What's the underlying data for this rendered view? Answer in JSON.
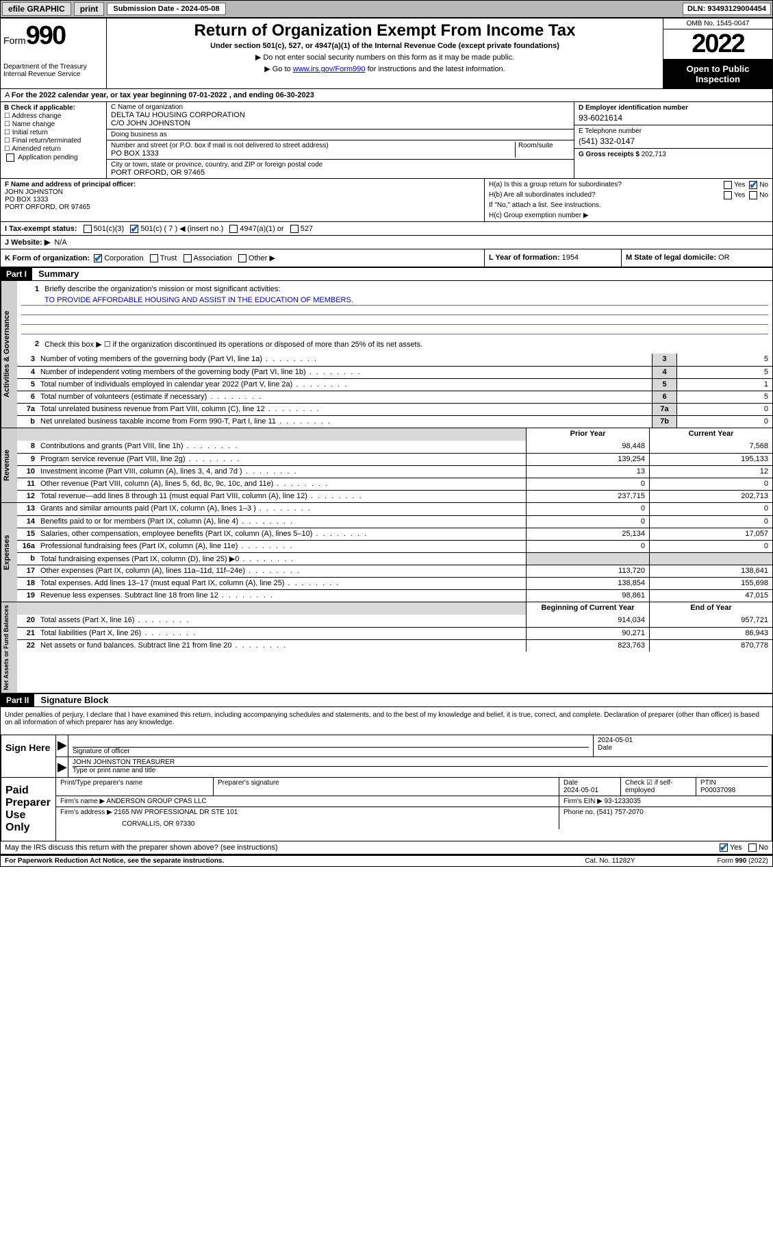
{
  "topbar": {
    "efile": "efile GRAPHIC",
    "print": "print",
    "submission_label": "Submission Date - 2024-05-08",
    "dln": "DLN: 93493129004454"
  },
  "header": {
    "form_prefix": "Form",
    "form_num": "990",
    "dept": "Department of the Treasury",
    "irs": "Internal Revenue Service",
    "title": "Return of Organization Exempt From Income Tax",
    "subtitle": "Under section 501(c), 527, or 4947(a)(1) of the Internal Revenue Code (except private foundations)",
    "warn": "▶ Do not enter social security numbers on this form as it may be made public.",
    "goto": "▶ Go to www.irs.gov/Form990 for instructions and the latest information.",
    "goto_link": "www.irs.gov/Form990",
    "omb": "OMB No. 1545-0047",
    "year": "2022",
    "open": "Open to Public Inspection"
  },
  "line_a": "For the 2022 calendar year, or tax year beginning 07-01-2022   , and ending 06-30-2023",
  "col_b": {
    "label": "B Check if applicable:",
    "opts": [
      "☐ Address change",
      "☐ Name change",
      "☐ Initial return",
      "☐ Final return/terminated",
      "☐ Amended return",
      "   Application pending"
    ]
  },
  "col_c": {
    "name_label": "C Name of organization",
    "name": "DELTA TAU HOUSING CORPORATION",
    "care_of": "C/O JOHN JOHNSTON",
    "dba_label": "Doing business as",
    "dba": "",
    "addr_label": "Number and street (or P.O. box if mail is not delivered to street address)",
    "room_label": "Room/suite",
    "addr": "PO BOX 1333",
    "city_label": "City or town, state or province, country, and ZIP or foreign postal code",
    "city": "PORT ORFORD, OR  97465"
  },
  "col_d": {
    "label": "D Employer identification number",
    "val": "93-6021614"
  },
  "col_e": {
    "label": "E Telephone number",
    "val": "(541) 332-0147"
  },
  "col_g": {
    "label": "G Gross receipts $",
    "val": "202,713"
  },
  "col_f": {
    "label": "F  Name and address of principal officer:",
    "name": "JOHN JOHNSTON",
    "addr1": "PO BOX 1333",
    "addr2": "PORT ORFORD, OR  97465"
  },
  "col_h": {
    "ha": "H(a)  Is this a group return for subordinates?",
    "ha_yes": "Yes",
    "ha_no": "No",
    "hb": "H(b)  Are all subordinates included?",
    "hb_yes": "Yes",
    "hb_no": "No",
    "hb_note": "If \"No,\" attach a list. See instructions.",
    "hc": "H(c)  Group exemption number ▶"
  },
  "row_i": {
    "label": "I     Tax-exempt status:",
    "c3": "501(c)(3)",
    "c": "501(c) ( 7 ) ◀ (insert no.)",
    "a1": "4947(a)(1) or",
    "s527": "527"
  },
  "row_j": {
    "label": "J    Website: ▶",
    "val": "N/A"
  },
  "row_k": {
    "label": "K Form of organization:",
    "corp": "Corporation",
    "trust": "Trust",
    "assoc": "Association",
    "other": "Other ▶"
  },
  "row_l": {
    "label": "L Year of formation:",
    "val": "1954"
  },
  "row_m": {
    "label": "M State of legal domicile:",
    "val": "OR"
  },
  "part1": {
    "tag": "Part I",
    "title": "Summary",
    "line1_label": "Briefly describe the organization's mission or most significant activities:",
    "mission": "TO PROVIDE AFFORDABLE HOUSING AND ASSIST IN THE EDUCATION OF MEMBERS.",
    "line2": "Check this box ▶ ☐  if the organization discontinued its operations or disposed of more than 25% of its net assets."
  },
  "sections": {
    "gov_label": "Activities & Governance",
    "rev_label": "Revenue",
    "exp_label": "Expenses",
    "net_label": "Net Assets or Fund Balances"
  },
  "gov_rows": [
    {
      "n": "3",
      "d": "Number of voting members of the governing body (Part VI, line 1a)",
      "cell": "3",
      "v": "5"
    },
    {
      "n": "4",
      "d": "Number of independent voting members of the governing body (Part VI, line 1b)",
      "cell": "4",
      "v": "5"
    },
    {
      "n": "5",
      "d": "Total number of individuals employed in calendar year 2022 (Part V, line 2a)",
      "cell": "5",
      "v": "1"
    },
    {
      "n": "6",
      "d": "Total number of volunteers (estimate if necessary)",
      "cell": "6",
      "v": "5"
    },
    {
      "n": "7a",
      "d": "Total unrelated business revenue from Part VIII, column (C), line 12",
      "cell": "7a",
      "v": "0"
    },
    {
      "n": "b",
      "d": "Net unrelated business taxable income from Form 990-T, Part I, line 11",
      "cell": "7b",
      "v": "0"
    }
  ],
  "col_headers": {
    "prior": "Prior Year",
    "curr": "Current Year"
  },
  "rev_rows": [
    {
      "n": "8",
      "d": "Contributions and grants (Part VIII, line 1h)",
      "p": "98,448",
      "c": "7,568"
    },
    {
      "n": "9",
      "d": "Program service revenue (Part VIII, line 2g)",
      "p": "139,254",
      "c": "195,133"
    },
    {
      "n": "10",
      "d": "Investment income (Part VIII, column (A), lines 3, 4, and 7d )",
      "p": "13",
      "c": "12"
    },
    {
      "n": "11",
      "d": "Other revenue (Part VIII, column (A), lines 5, 6d, 8c, 9c, 10c, and 11e)",
      "p": "0",
      "c": "0"
    },
    {
      "n": "12",
      "d": "Total revenue—add lines 8 through 11 (must equal Part VIII, column (A), line 12)",
      "p": "237,715",
      "c": "202,713"
    }
  ],
  "exp_rows": [
    {
      "n": "13",
      "d": "Grants and similar amounts paid (Part IX, column (A), lines 1–3 )",
      "p": "0",
      "c": "0"
    },
    {
      "n": "14",
      "d": "Benefits paid to or for members (Part IX, column (A), line 4)",
      "p": "0",
      "c": "0"
    },
    {
      "n": "15",
      "d": "Salaries, other compensation, employee benefits (Part IX, column (A), lines 5–10)",
      "p": "25,134",
      "c": "17,057"
    },
    {
      "n": "16a",
      "d": "Professional fundraising fees (Part IX, column (A), line 11e)",
      "p": "0",
      "c": "0"
    },
    {
      "n": "b",
      "d": "Total fundraising expenses (Part IX, column (D), line 25) ▶0",
      "p": "",
      "c": "",
      "grey": true
    },
    {
      "n": "17",
      "d": "Other expenses (Part IX, column (A), lines 11a–11d, 11f–24e)",
      "p": "113,720",
      "c": "138,641"
    },
    {
      "n": "18",
      "d": "Total expenses. Add lines 13–17 (must equal Part IX, column (A), line 25)",
      "p": "138,854",
      "c": "155,698"
    },
    {
      "n": "19",
      "d": "Revenue less expenses. Subtract line 18 from line 12",
      "p": "98,861",
      "c": "47,015"
    }
  ],
  "net_headers": {
    "begin": "Beginning of Current Year",
    "end": "End of Year"
  },
  "net_rows": [
    {
      "n": "20",
      "d": "Total assets (Part X, line 16)",
      "p": "914,034",
      "c": "957,721"
    },
    {
      "n": "21",
      "d": "Total liabilities (Part X, line 26)",
      "p": "90,271",
      "c": "86,943"
    },
    {
      "n": "22",
      "d": "Net assets or fund balances. Subtract line 21 from line 20",
      "p": "823,763",
      "c": "870,778"
    }
  ],
  "part2": {
    "tag": "Part II",
    "title": "Signature Block",
    "perjury": "Under penalties of perjury, I declare that I have examined this return, including accompanying schedules and statements, and to the best of my knowledge and belief, it is true, correct, and complete. Declaration of preparer (other than officer) is based on all information of which preparer has any knowledge."
  },
  "sign": {
    "here": "Sign Here",
    "sig_label": "Signature of officer",
    "date_label": "Date",
    "date": "2024-05-01",
    "name": "JOHN JOHNSTON TREASURER",
    "name_label": "Type or print name and title"
  },
  "paid": {
    "label": "Paid Preparer Use Only",
    "h_name": "Print/Type preparer's name",
    "h_sig": "Preparer's signature",
    "h_date": "Date",
    "date": "2024-05-01",
    "h_check": "Check ☑ if self-employed",
    "h_ptin": "PTIN",
    "ptin": "P00037098",
    "firm_name_l": "Firm's name    ▶",
    "firm_name": "ANDERSON GROUP CPAS LLC",
    "firm_ein_l": "Firm's EIN ▶",
    "firm_ein": "93-1233035",
    "firm_addr_l": "Firm's address ▶",
    "firm_addr1": "2165 NW PROFESSIONAL DR STE 101",
    "firm_addr2": "CORVALLIS, OR  97330",
    "phone_l": "Phone no.",
    "phone": "(541) 757-2070"
  },
  "discuss": {
    "q": "May the IRS discuss this return with the preparer shown above? (see instructions)",
    "yes": "Yes",
    "no": "No"
  },
  "footer": {
    "left": "For Paperwork Reduction Act Notice, see the separate instructions.",
    "mid": "Cat. No. 11282Y",
    "right": "Form 990 (2022)"
  }
}
